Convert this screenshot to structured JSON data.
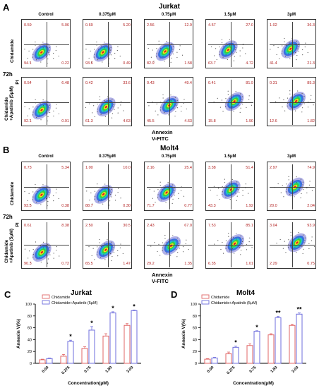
{
  "panelA": {
    "letter": "A",
    "title": "Jurkat",
    "columns": [
      "Control",
      "0.375μM",
      "0.75μM",
      "1.5μM",
      "3μM"
    ],
    "rows": [
      {
        "label": "Chidamide",
        "plots": [
          {
            "ul": "0.59",
            "ur": "5.06",
            "ll": "94.1",
            "lr": "0.22"
          },
          {
            "ul": "0.69",
            "ur": "5.20",
            "ll": "93.6",
            "lr": "0.49"
          },
          {
            "ul": "2.56",
            "ur": "12.9",
            "ll": "82.9",
            "lr": "1.58"
          },
          {
            "ul": "4.57",
            "ur": "27.0",
            "ll": "63.7",
            "lr": "4.72"
          },
          {
            "ul": "1.02",
            "ur": "36.3",
            "ll": "41.4",
            "lr": "21.3"
          }
        ]
      },
      {
        "label": "Chidamide",
        "label2": "+Apatinib (5μM)",
        "plots": [
          {
            "ul": "0.54",
            "ur": "6.48",
            "ll": "92.1",
            "lr": "0.91"
          },
          {
            "ul": "0.42",
            "ur": "33.6",
            "ll": "61.3",
            "lr": "4.63"
          },
          {
            "ul": "0.43",
            "ur": "49.4",
            "ll": "45.5",
            "lr": "4.63"
          },
          {
            "ul": "0.41",
            "ur": "81.9",
            "ll": "15.8",
            "lr": "1.90"
          },
          {
            "ul": "0.31",
            "ur": "85.3",
            "ll": "12.6",
            "lr": "1.82"
          }
        ]
      }
    ],
    "time": "72h",
    "ylabel": "PI",
    "xlabel": "Annexin V-FITC"
  },
  "panelB": {
    "letter": "B",
    "title": "Molt4",
    "columns": [
      "Control",
      "0.375μM",
      "0.75μM",
      "1.5μM",
      "3μM"
    ],
    "rows": [
      {
        "label": "Chidamide",
        "plots": [
          {
            "ul": "0.73",
            "ur": "5.34",
            "ll": "93.5",
            "lr": "0.38"
          },
          {
            "ul": "1.00",
            "ur": "10.0",
            "ll": "88.7",
            "lr": "0.30"
          },
          {
            "ul": "2.16",
            "ur": "25.4",
            "ll": "71.7",
            "lr": "0.77"
          },
          {
            "ul": "3.38",
            "ur": "51.4",
            "ll": "43.3",
            "lr": "1.92"
          },
          {
            "ul": "2.97",
            "ur": "74.9",
            "ll": "20.0",
            "lr": "2.04"
          }
        ]
      },
      {
        "label": "Chidamide",
        "label2": "+Apatinib (5μM)",
        "plots": [
          {
            "ul": "0.61",
            "ur": "8.38",
            "ll": "90.3",
            "lr": "0.72"
          },
          {
            "ul": "2.50",
            "ur": "30.5",
            "ll": "65.5",
            "lr": "1.47"
          },
          {
            "ul": "2.43",
            "ur": "67.0",
            "ll": "29.2",
            "lr": "1.35"
          },
          {
            "ul": "7.53",
            "ur": "85.1",
            "ll": "6.35",
            "lr": "1.01"
          },
          {
            "ul": "3.04",
            "ur": "93.9",
            "ll": "2.29",
            "lr": "0.75"
          }
        ]
      }
    ],
    "time": "72h",
    "ylabel": "PI",
    "xlabel": "Annexin V-FITC"
  },
  "panelC": {
    "letter": "C",
    "title": "Jurkat"
  },
  "panelD": {
    "letter": "D",
    "title": "Molt4"
  },
  "colors": {
    "chidamide": "#e06666",
    "combo": "#6c6cdc",
    "quadValue": "#b22222"
  },
  "chart_data": [
    {
      "type": "bar",
      "title": "Jurkat",
      "categories": [
        "0.00",
        "0.375",
        "0.75",
        "1.50",
        "3.00"
      ],
      "series": [
        {
          "name": "Chidamide",
          "values": [
            6,
            12,
            25,
            46,
            64
          ],
          "errors": [
            1,
            3,
            3,
            4,
            3
          ]
        },
        {
          "name": "Chidamide+Apatinib (5μM)",
          "values": [
            8,
            37,
            56,
            85,
            89
          ],
          "errors": [
            1,
            2,
            6,
            2,
            1
          ]
        }
      ],
      "significance": [
        "",
        "*",
        "*",
        "*",
        "*"
      ],
      "xlabel": "Concentration(μM)",
      "ylabel": "Annexin V(%)",
      "ylim": [
        0,
        100
      ],
      "yticks": [
        "0",
        "20",
        "40",
        "60",
        "80",
        "100"
      ]
    },
    {
      "type": "bar",
      "title": "",
      "categories": [
        "0.00",
        "0.375",
        "0.75",
        "1.50",
        "3.00"
      ],
      "series": [
        {
          "name": "Chidamide",
          "values": [
            7,
            16,
            30,
            48,
            64
          ],
          "errors": [
            1,
            3,
            3,
            2,
            2
          ]
        },
        {
          "name": "Chidamide+Apatinib (5μM)",
          "values": [
            9,
            27,
            54,
            77,
            83
          ],
          "errors": [
            1,
            2,
            1,
            2,
            2
          ]
        }
      ],
      "significance": [
        "",
        "*",
        "*",
        "**",
        "**"
      ],
      "xlabel": "Concentration(μM)",
      "ylabel": "Annexin V(%)",
      "ylim": [
        0,
        100
      ],
      "yticks": [
        "0",
        "20",
        "40",
        "60",
        "80",
        "100"
      ]
    }
  ]
}
